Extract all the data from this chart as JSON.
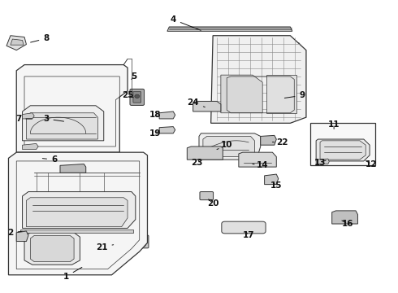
{
  "bg_color": "#ffffff",
  "lc": "#333333",
  "label_color": "#111111",
  "lw_main": 0.9,
  "lw_thin": 0.5,
  "lw_med": 0.7,
  "fs": 7.5,
  "figw": 4.9,
  "figh": 3.6,
  "dpi": 100,
  "labels": {
    "1": [
      0.165,
      0.055,
      0.21,
      0.09
    ],
    "2": [
      0.025,
      0.205,
      0.06,
      0.21
    ],
    "3": [
      0.115,
      0.595,
      0.165,
      0.585
    ],
    "4": [
      0.435,
      0.935,
      0.51,
      0.895
    ],
    "5": [
      0.335,
      0.74,
      0.33,
      0.73
    ],
    "6": [
      0.135,
      0.455,
      0.1,
      0.46
    ],
    "7": [
      0.045,
      0.595,
      0.085,
      0.595
    ],
    "8": [
      0.115,
      0.87,
      0.07,
      0.855
    ],
    "9": [
      0.76,
      0.675,
      0.71,
      0.665
    ],
    "10": [
      0.57,
      0.505,
      0.545,
      0.49
    ],
    "11": [
      0.84,
      0.575,
      0.84,
      0.56
    ],
    "12": [
      0.935,
      0.44,
      0.915,
      0.455
    ],
    "13": [
      0.805,
      0.445,
      0.825,
      0.455
    ],
    "14": [
      0.66,
      0.435,
      0.635,
      0.44
    ],
    "15": [
      0.695,
      0.365,
      0.685,
      0.38
    ],
    "16": [
      0.875,
      0.235,
      0.855,
      0.25
    ],
    "17": [
      0.625,
      0.195,
      0.615,
      0.215
    ],
    "18": [
      0.39,
      0.61,
      0.4,
      0.6
    ],
    "19": [
      0.39,
      0.545,
      0.405,
      0.558
    ],
    "20": [
      0.535,
      0.305,
      0.52,
      0.325
    ],
    "21": [
      0.255,
      0.155,
      0.29,
      0.165
    ],
    "22": [
      0.71,
      0.515,
      0.685,
      0.515
    ],
    "23": [
      0.495,
      0.445,
      0.505,
      0.46
    ],
    "24": [
      0.485,
      0.65,
      0.515,
      0.635
    ],
    "25": [
      0.32,
      0.675,
      0.34,
      0.665
    ]
  }
}
